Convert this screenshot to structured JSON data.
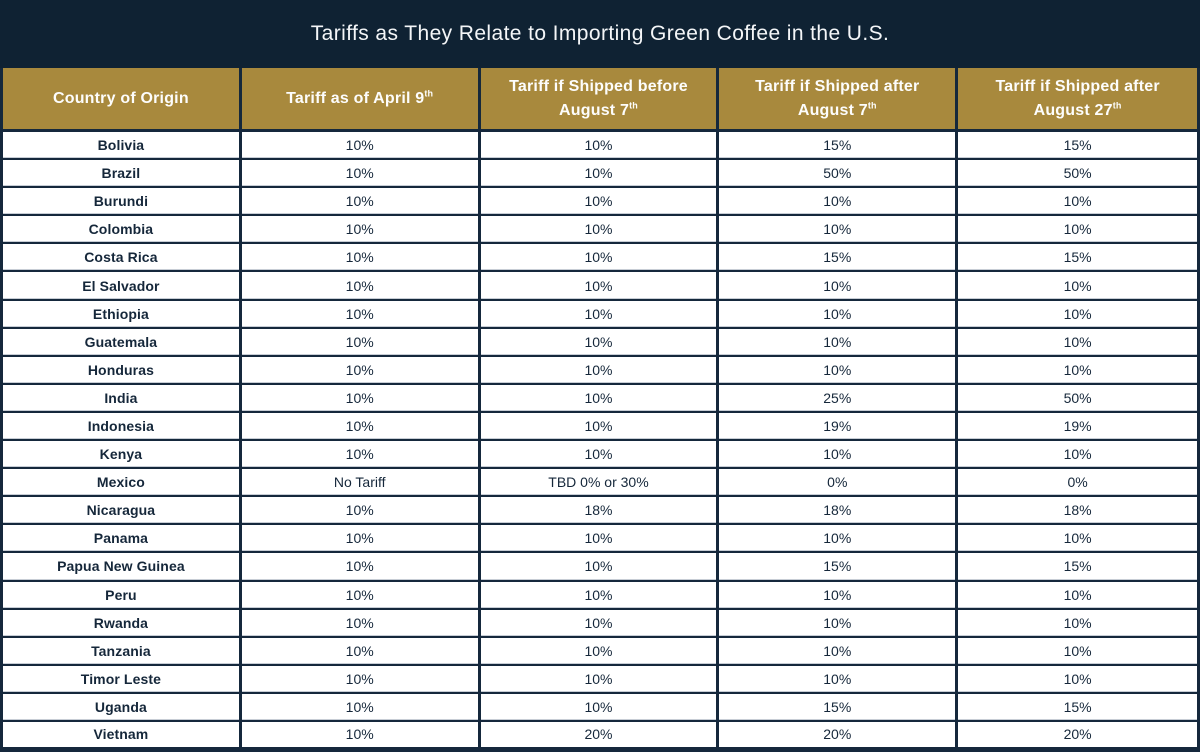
{
  "title": "Tariffs as They Relate to Importing Green Coffee in the U.S.",
  "colors": {
    "navy_band": "#0F2233",
    "gold_header": "#A8893D",
    "border_navy": "#15283C",
    "text_dark": "#15273A",
    "header_text": "#FDFDFC",
    "light_edge": "#C7CDD5"
  },
  "chart_data": {
    "type": "table",
    "title": "Tariffs as They Relate to Importing Green Coffee in the U.S.",
    "columns": [
      {
        "lines": [
          {
            "text": "Country of Origin",
            "sup": ""
          }
        ]
      },
      {
        "lines": [
          {
            "text": "Tariff as of April 9",
            "sup": "th"
          }
        ]
      },
      {
        "lines": [
          {
            "text": "Tariff if Shipped before",
            "sup": ""
          },
          {
            "text": "August 7",
            "sup": "th"
          }
        ]
      },
      {
        "lines": [
          {
            "text": "Tariff if Shipped after",
            "sup": ""
          },
          {
            "text": "August 7",
            "sup": "th"
          }
        ]
      },
      {
        "lines": [
          {
            "text": "Tariff if Shipped after",
            "sup": ""
          },
          {
            "text": "August 27",
            "sup": "th"
          }
        ]
      }
    ],
    "rows": [
      {
        "country": "Bolivia",
        "values": [
          "10%",
          "10%",
          "15%",
          "15%"
        ]
      },
      {
        "country": "Brazil",
        "values": [
          "10%",
          "10%",
          "50%",
          "50%"
        ]
      },
      {
        "country": "Burundi",
        "values": [
          "10%",
          "10%",
          "10%",
          "10%"
        ]
      },
      {
        "country": "Colombia",
        "values": [
          "10%",
          "10%",
          "10%",
          "10%"
        ]
      },
      {
        "country": "Costa Rica",
        "values": [
          "10%",
          "10%",
          "15%",
          "15%"
        ]
      },
      {
        "country": "El Salvador",
        "values": [
          "10%",
          "10%",
          "10%",
          "10%"
        ]
      },
      {
        "country": "Ethiopia",
        "values": [
          "10%",
          "10%",
          "10%",
          "10%"
        ]
      },
      {
        "country": "Guatemala",
        "values": [
          "10%",
          "10%",
          "10%",
          "10%"
        ]
      },
      {
        "country": "Honduras",
        "values": [
          "10%",
          "10%",
          "10%",
          "10%"
        ]
      },
      {
        "country": "India",
        "values": [
          "10%",
          "10%",
          "25%",
          "50%"
        ]
      },
      {
        "country": "Indonesia",
        "values": [
          "10%",
          "10%",
          "19%",
          "19%"
        ]
      },
      {
        "country": "Kenya",
        "values": [
          "10%",
          "10%",
          "10%",
          "10%"
        ]
      },
      {
        "country": "Mexico",
        "values": [
          "No Tariff",
          "TBD 0% or 30%",
          "0%",
          "0%"
        ]
      },
      {
        "country": "Nicaragua",
        "values": [
          "10%",
          "18%",
          "18%",
          "18%"
        ]
      },
      {
        "country": "Panama",
        "values": [
          "10%",
          "10%",
          "10%",
          "10%"
        ]
      },
      {
        "country": "Papua New Guinea",
        "values": [
          "10%",
          "10%",
          "15%",
          "15%"
        ]
      },
      {
        "country": "Peru",
        "values": [
          "10%",
          "10%",
          "10%",
          "10%"
        ]
      },
      {
        "country": "Rwanda",
        "values": [
          "10%",
          "10%",
          "10%",
          "10%"
        ]
      },
      {
        "country": "Tanzania",
        "values": [
          "10%",
          "10%",
          "10%",
          "10%"
        ]
      },
      {
        "country": "Timor Leste",
        "values": [
          "10%",
          "10%",
          "10%",
          "10%"
        ]
      },
      {
        "country": "Uganda",
        "values": [
          "10%",
          "10%",
          "15%",
          "15%"
        ]
      },
      {
        "country": "Vietnam",
        "values": [
          "10%",
          "20%",
          "20%",
          "20%"
        ]
      }
    ]
  }
}
